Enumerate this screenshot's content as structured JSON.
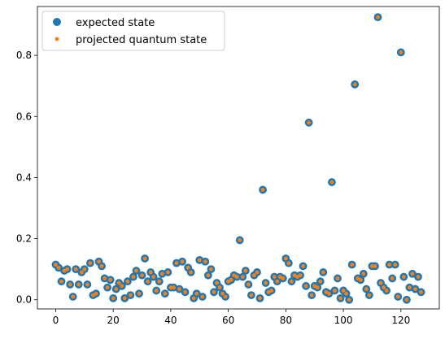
{
  "chart_data": {
    "type": "scatter",
    "xlim": [
      -6.35,
      133.35
    ],
    "ylim": [
      -0.03,
      0.96
    ],
    "x_ticks": [
      0,
      20,
      40,
      60,
      80,
      100,
      120
    ],
    "y_ticks": [
      0.0,
      0.2,
      0.4,
      0.6,
      0.8
    ],
    "x_tick_labels": [
      "0",
      "20",
      "40",
      "60",
      "80",
      "100",
      "120"
    ],
    "y_tick_labels": [
      "0.0",
      "0.2",
      "0.4",
      "0.6",
      "0.8"
    ],
    "grid": false,
    "legend_position": "upper-left",
    "x": [
      0,
      1,
      2,
      3,
      4,
      5,
      6,
      7,
      8,
      9,
      10,
      11,
      12,
      13,
      14,
      15,
      16,
      17,
      18,
      19,
      20,
      21,
      22,
      23,
      24,
      25,
      26,
      27,
      28,
      29,
      30,
      31,
      32,
      33,
      34,
      35,
      36,
      37,
      38,
      39,
      40,
      41,
      42,
      43,
      44,
      45,
      46,
      47,
      48,
      49,
      50,
      51,
      52,
      53,
      54,
      55,
      56,
      57,
      58,
      59,
      60,
      61,
      62,
      63,
      64,
      65,
      66,
      67,
      68,
      69,
      70,
      71,
      72,
      73,
      74,
      75,
      76,
      77,
      78,
      79,
      80,
      81,
      82,
      83,
      84,
      85,
      86,
      87,
      88,
      89,
      90,
      91,
      92,
      93,
      94,
      95,
      96,
      97,
      98,
      99,
      100,
      101,
      102,
      103,
      104,
      105,
      106,
      107,
      108,
      109,
      110,
      111,
      112,
      113,
      114,
      115,
      116,
      117,
      118,
      119,
      120,
      121,
      122,
      123,
      124,
      125,
      126,
      127
    ],
    "series": [
      {
        "name": "expected state",
        "color": "#1f77b4",
        "marker": "large-circle",
        "values": [
          0.115,
          0.105,
          0.06,
          0.095,
          0.1,
          0.05,
          0.01,
          0.1,
          0.05,
          0.09,
          0.1,
          0.05,
          0.12,
          0.015,
          0.02,
          0.125,
          0.11,
          0.07,
          0.04,
          0.065,
          0.005,
          0.035,
          0.055,
          0.045,
          0.005,
          0.06,
          0.015,
          0.075,
          0.095,
          0.02,
          0.08,
          0.135,
          0.06,
          0.09,
          0.075,
          0.03,
          0.06,
          0.085,
          0.02,
          0.09,
          0.04,
          0.04,
          0.12,
          0.035,
          0.125,
          0.025,
          0.105,
          0.09,
          0.005,
          0.02,
          0.13,
          0.01,
          0.125,
          0.08,
          0.1,
          0.025,
          0.055,
          0.04,
          0.02,
          0.01,
          0.06,
          0.065,
          0.08,
          0.075,
          0.195,
          0.075,
          0.095,
          0.05,
          0.015,
          0.08,
          0.09,
          0.005,
          0.36,
          0.055,
          0.025,
          0.03,
          0.075,
          0.06,
          0.075,
          0.07,
          0.135,
          0.12,
          0.06,
          0.08,
          0.075,
          0.08,
          0.11,
          0.045,
          0.58,
          0.015,
          0.045,
          0.04,
          0.06,
          0.09,
          0.025,
          0.02,
          0.385,
          0.03,
          0.07,
          0.005,
          0.03,
          0.02,
          0.0,
          0.115,
          0.705,
          0.07,
          0.065,
          0.085,
          0.035,
          0.015,
          0.11,
          0.11,
          0.925,
          0.055,
          0.04,
          0.03,
          0.115,
          0.07,
          0.115,
          0.01,
          0.81,
          0.075,
          0.0,
          0.04,
          0.085,
          0.035,
          0.075,
          0.025
        ]
      },
      {
        "name": "projected quantum state",
        "color": "#ff7f0e",
        "marker": "small-dot",
        "values": [
          0.115,
          0.105,
          0.06,
          0.095,
          0.1,
          0.05,
          0.01,
          0.1,
          0.05,
          0.09,
          0.1,
          0.05,
          0.12,
          0.015,
          0.02,
          0.125,
          0.11,
          0.07,
          0.04,
          0.065,
          0.005,
          0.035,
          0.055,
          0.045,
          0.005,
          0.06,
          0.015,
          0.075,
          0.095,
          0.02,
          0.08,
          0.135,
          0.06,
          0.09,
          0.075,
          0.03,
          0.06,
          0.085,
          0.02,
          0.09,
          0.04,
          0.04,
          0.12,
          0.035,
          0.125,
          0.025,
          0.105,
          0.09,
          0.005,
          0.02,
          0.13,
          0.01,
          0.125,
          0.08,
          0.1,
          0.025,
          0.055,
          0.04,
          0.02,
          0.01,
          0.06,
          0.065,
          0.08,
          0.075,
          0.195,
          0.075,
          0.095,
          0.05,
          0.015,
          0.08,
          0.09,
          0.005,
          0.36,
          0.055,
          0.025,
          0.03,
          0.075,
          0.06,
          0.075,
          0.07,
          0.135,
          0.12,
          0.06,
          0.08,
          0.075,
          0.08,
          0.11,
          0.045,
          0.58,
          0.015,
          0.045,
          0.04,
          0.06,
          0.09,
          0.025,
          0.02,
          0.385,
          0.03,
          0.07,
          0.005,
          0.03,
          0.02,
          0.0,
          0.115,
          0.705,
          0.07,
          0.065,
          0.085,
          0.035,
          0.015,
          0.11,
          0.11,
          0.925,
          0.055,
          0.04,
          0.03,
          0.115,
          0.07,
          0.115,
          0.01,
          0.81,
          0.075,
          0.0,
          0.04,
          0.085,
          0.035,
          0.075,
          0.025
        ]
      }
    ]
  },
  "legend": {
    "item_1": "expected state",
    "item_2": "projected quantum state"
  }
}
